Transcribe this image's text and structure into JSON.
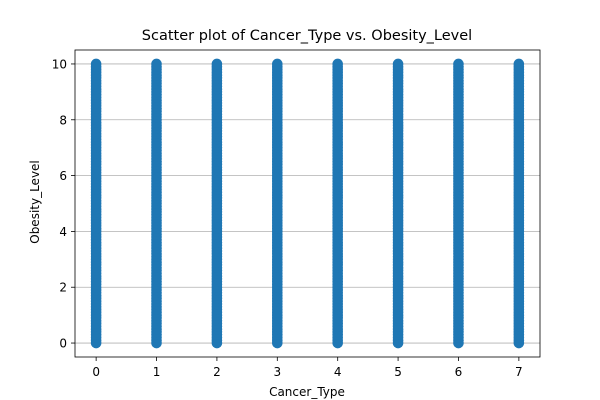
{
  "chart_data": {
    "type": "scatter",
    "title": "Scatter plot of Cancer_Type vs. Obesity_Level",
    "xlabel": "Cancer_Type",
    "ylabel": "Obesity_Level",
    "x_ticks": [
      0,
      1,
      2,
      3,
      4,
      5,
      6,
      7
    ],
    "y_ticks": [
      0,
      2,
      4,
      6,
      8,
      10
    ],
    "xlim": [
      -0.35,
      7.35
    ],
    "ylim": [
      -0.5,
      10.5
    ],
    "grid": "y-only",
    "color": "#1f77b4",
    "series": [
      {
        "x": 0,
        "y": [
          0,
          1,
          2,
          3,
          4,
          5,
          6,
          7,
          8,
          9,
          10
        ]
      },
      {
        "x": 1,
        "y": [
          0,
          1,
          2,
          3,
          4,
          5,
          6,
          7,
          8,
          9,
          10
        ]
      },
      {
        "x": 2,
        "y": [
          0,
          1,
          2,
          3,
          4,
          5,
          6,
          7,
          8,
          9,
          10
        ]
      },
      {
        "x": 3,
        "y": [
          0,
          1,
          2,
          3,
          4,
          5,
          6,
          7,
          8,
          9,
          10
        ]
      },
      {
        "x": 4,
        "y": [
          0,
          1,
          2,
          3,
          4,
          5,
          6,
          7,
          8,
          9,
          10
        ]
      },
      {
        "x": 5,
        "y": [
          0,
          1,
          2,
          3,
          4,
          5,
          6,
          7,
          8,
          9,
          10
        ]
      },
      {
        "x": 6,
        "y": [
          0,
          1,
          2,
          3,
          4,
          5,
          6,
          7,
          8,
          9,
          10
        ]
      },
      {
        "x": 7,
        "y": [
          0,
          1,
          2,
          3,
          4,
          5,
          6,
          7,
          8,
          9,
          10
        ]
      }
    ]
  }
}
